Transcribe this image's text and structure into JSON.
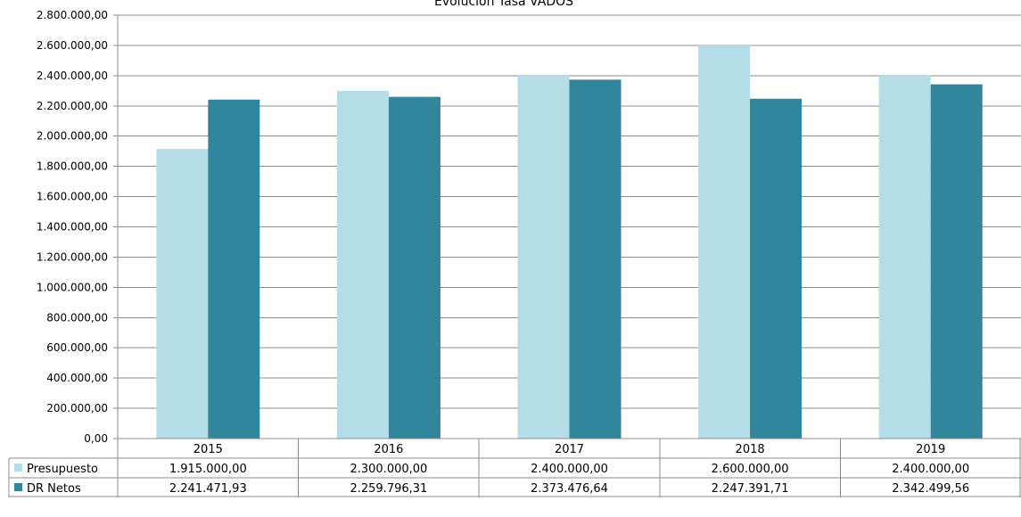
{
  "chart_data": {
    "type": "bar",
    "title": "Evolución Tasa VADOS",
    "categories": [
      "2015",
      "2016",
      "2017",
      "2018",
      "2019"
    ],
    "ylim": [
      0,
      2800000
    ],
    "ytick_labels": [
      "0,00",
      "200.000,00",
      "400.000,00",
      "600.000,00",
      "800.000,00",
      "1.000.000,00",
      "1.200.000,00",
      "1.400.000,00",
      "1.600.000,00",
      "1.800.000,00",
      "2.000.000,00",
      "2.200.000,00",
      "2.400.000,00",
      "2.600.000,00",
      "2.800.000,00"
    ],
    "grid": true,
    "legend": "data-table",
    "series": [
      {
        "name": "Presupuesto",
        "color": "#b5dde8",
        "values": [
          1915000.0,
          2300000.0,
          2400000.0,
          2600000.0,
          2400000.0
        ],
        "labels": [
          "1.915.000,00",
          "2.300.000,00",
          "2.400.000,00",
          "2.600.000,00",
          "2.400.000,00"
        ]
      },
      {
        "name": "DR Netos",
        "color": "#31869b",
        "values": [
          2241471.93,
          2259796.31,
          2373476.64,
          2247391.71,
          2342499.56
        ],
        "labels": [
          "2.241.471,93",
          "2.259.796,31",
          "2.373.476,64",
          "2.247.391,71",
          "2.342.499,56"
        ]
      }
    ]
  }
}
